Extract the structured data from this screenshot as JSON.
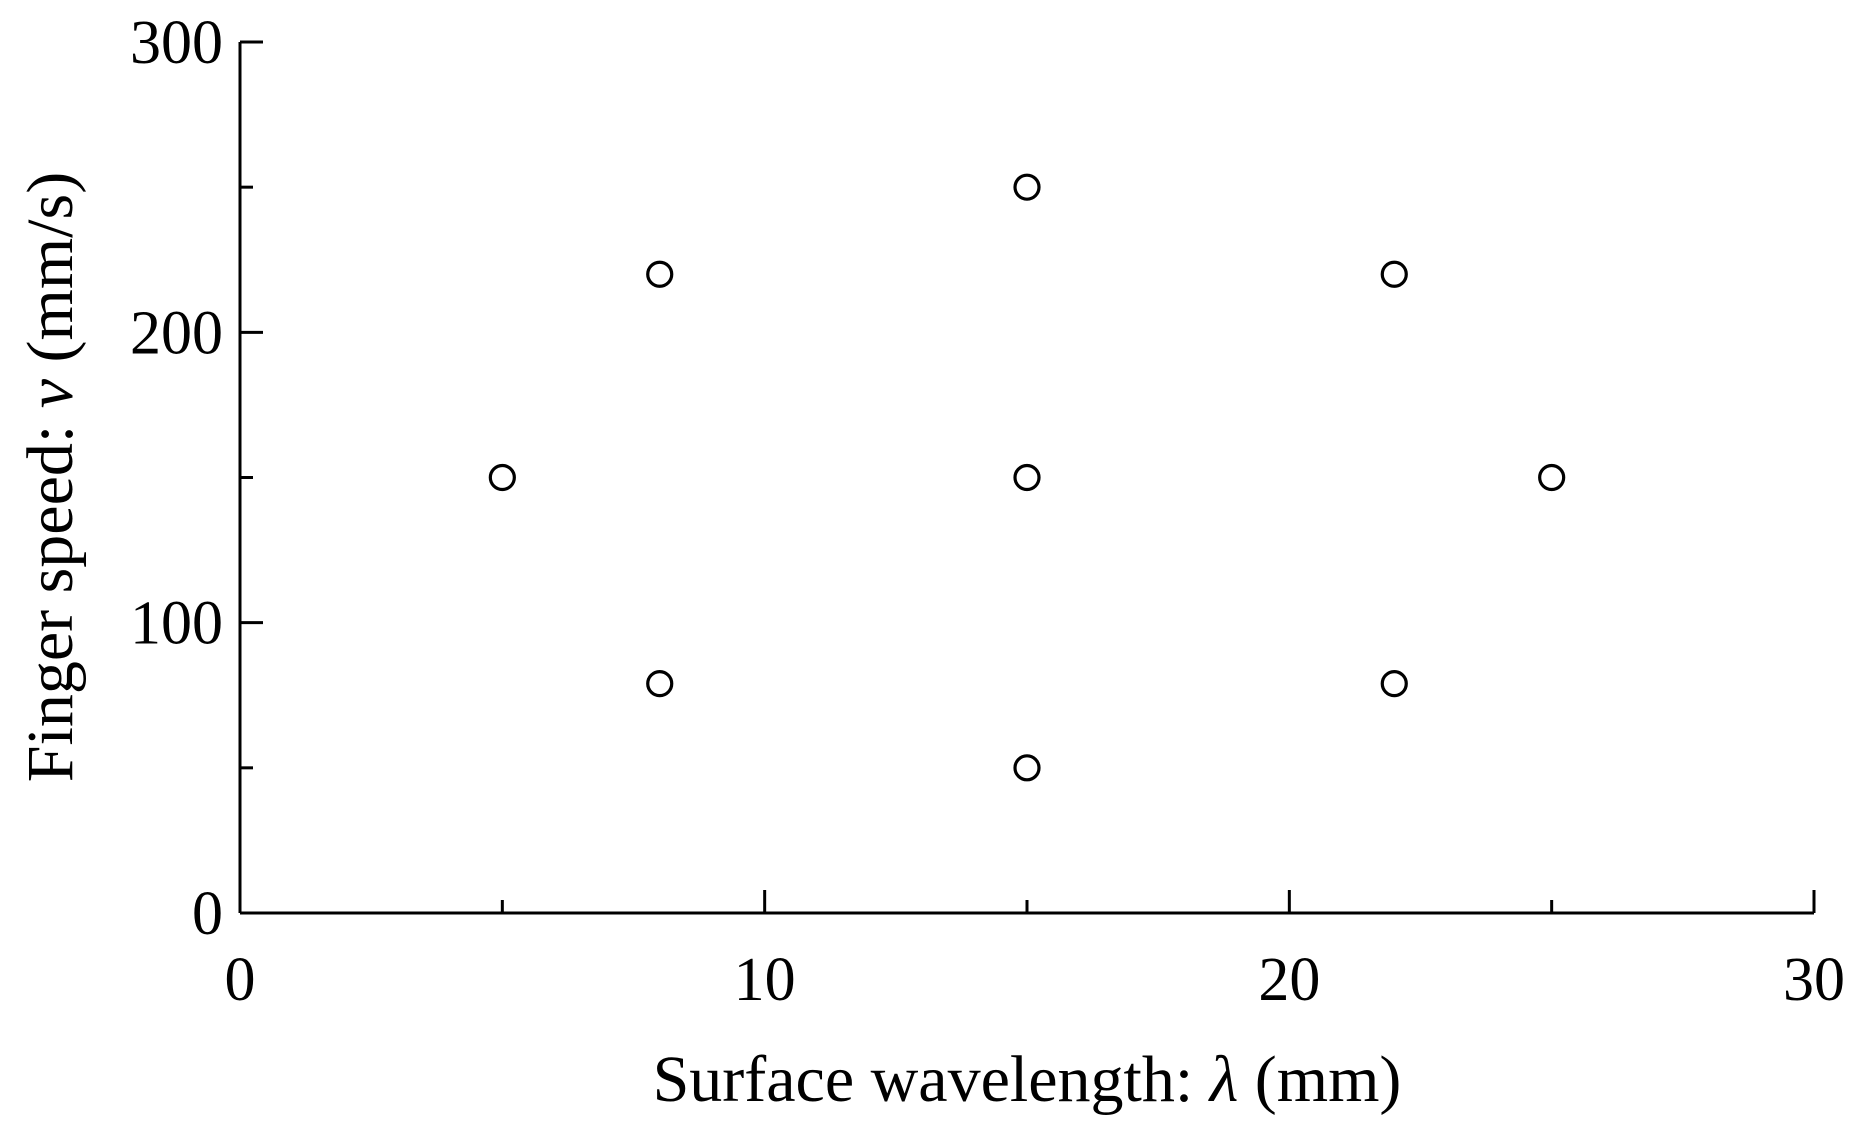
{
  "chart_data": {
    "type": "scatter",
    "xlabel": {
      "prefix": "Surface wavelength: ",
      "symbol": "λ",
      "suffix": " (mm)"
    },
    "ylabel": {
      "prefix": "Finger speed: ",
      "symbol": "v",
      "suffix": " (mm/s)"
    },
    "xlim": [
      0,
      30
    ],
    "ylim": [
      0,
      300
    ],
    "x_major_ticks": [
      0,
      10,
      20,
      30
    ],
    "x_minor_ticks": [
      5,
      15,
      25
    ],
    "y_major_ticks": [
      0,
      100,
      200,
      300
    ],
    "y_minor_ticks": [
      50,
      150,
      250
    ],
    "grid": false,
    "marker": "open-circle",
    "points": [
      {
        "x": 5,
        "y": 150
      },
      {
        "x": 8,
        "y": 220
      },
      {
        "x": 8,
        "y": 79
      },
      {
        "x": 15,
        "y": 250
      },
      {
        "x": 15,
        "y": 150
      },
      {
        "x": 15,
        "y": 50
      },
      {
        "x": 22,
        "y": 220
      },
      {
        "x": 22,
        "y": 79
      },
      {
        "x": 25,
        "y": 150
      }
    ]
  }
}
